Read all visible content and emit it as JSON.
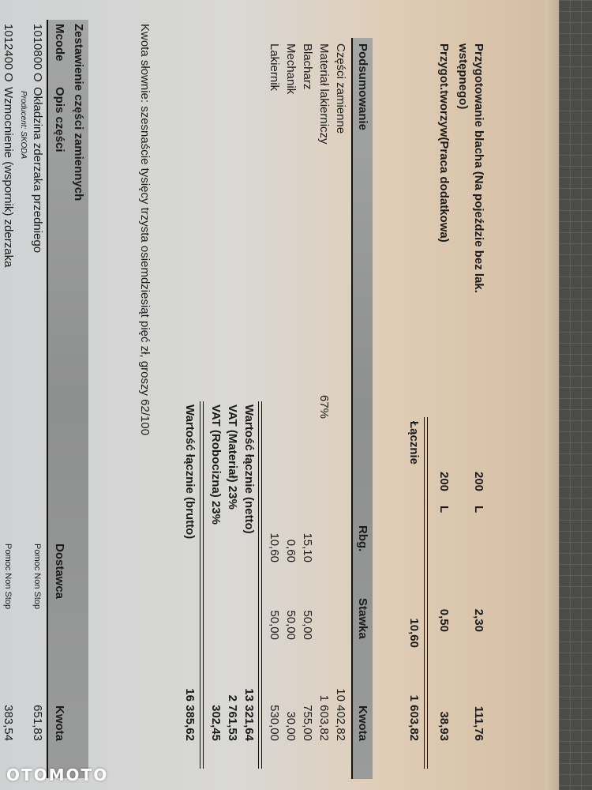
{
  "labour": [
    {
      "label_line1": "Przygotowanie blacha (Na pojeździe bez lak.",
      "label_line2": "wstępnego)",
      "qty": "200",
      "unit": "L",
      "hours": "2,30",
      "amount": "111,76"
    },
    {
      "label_line1": "Przygot.tworzyw(Praca dodatkowa)",
      "qty": "200",
      "unit": "L",
      "hours": "0,50",
      "amount": "38,93"
    }
  ],
  "labour_total": {
    "label": "Łącznie",
    "hours": "10,60",
    "amount": "1 603,82"
  },
  "summary": {
    "title": "Podsumowanie",
    "columns": [
      "Rbg.",
      "Stawka",
      "Kwota"
    ],
    "rows": [
      {
        "label": "Części zamienne",
        "pct": "",
        "rbg": "",
        "rate": "",
        "amount": "10 402,82"
      },
      {
        "label": "Materiał lakierniczy",
        "pct": "67%",
        "rbg": "",
        "rate": "",
        "amount": "1 603,82"
      },
      {
        "label": "Blacharz",
        "pct": "",
        "rbg": "15,10",
        "rate": "50,00",
        "amount": "755,00"
      },
      {
        "label": "Mechanik",
        "pct": "",
        "rbg": "0,60",
        "rate": "50,00",
        "amount": "30,00"
      },
      {
        "label": "Lakiernik",
        "pct": "",
        "rbg": "10,60",
        "rate": "50,00",
        "amount": "530,00"
      }
    ],
    "totals": [
      {
        "label": "Wartość łącznie (netto)",
        "amount": "13 321,64"
      },
      {
        "label": "VAT (Materiał) 23%",
        "amount": "2 761,53"
      },
      {
        "label": "VAT (Robocizna) 23%",
        "amount": "302,45"
      }
    ],
    "gross": {
      "label": "Wartość łącznie (brutto)",
      "amount": "16 385,62"
    }
  },
  "amount_in_words": "Kwota słownie: szesnaście tysięcy trzysta osiemdziesiąt pięć zł, groszy 62/100",
  "parts": {
    "title": "Zestawienie części zamiennych",
    "columns": [
      "Mcode",
      "Opis części",
      "Dostawca",
      "Kwota"
    ],
    "rows": [
      {
        "mcode": "1010800",
        "flag": "O",
        "desc": "Okładzina zderzaka przedniego",
        "producer": "Producent: SKODA",
        "supplier": "Pomoc Non Stop",
        "amount": "651,83"
      },
      {
        "mcode": "1012400",
        "flag": "O",
        "desc": "Wzmocnienie (wspornik) zderzaka",
        "supplier": "Pomoc Non Stop",
        "amount": "383,54"
      }
    ]
  },
  "watermark": "OTOMOTO"
}
